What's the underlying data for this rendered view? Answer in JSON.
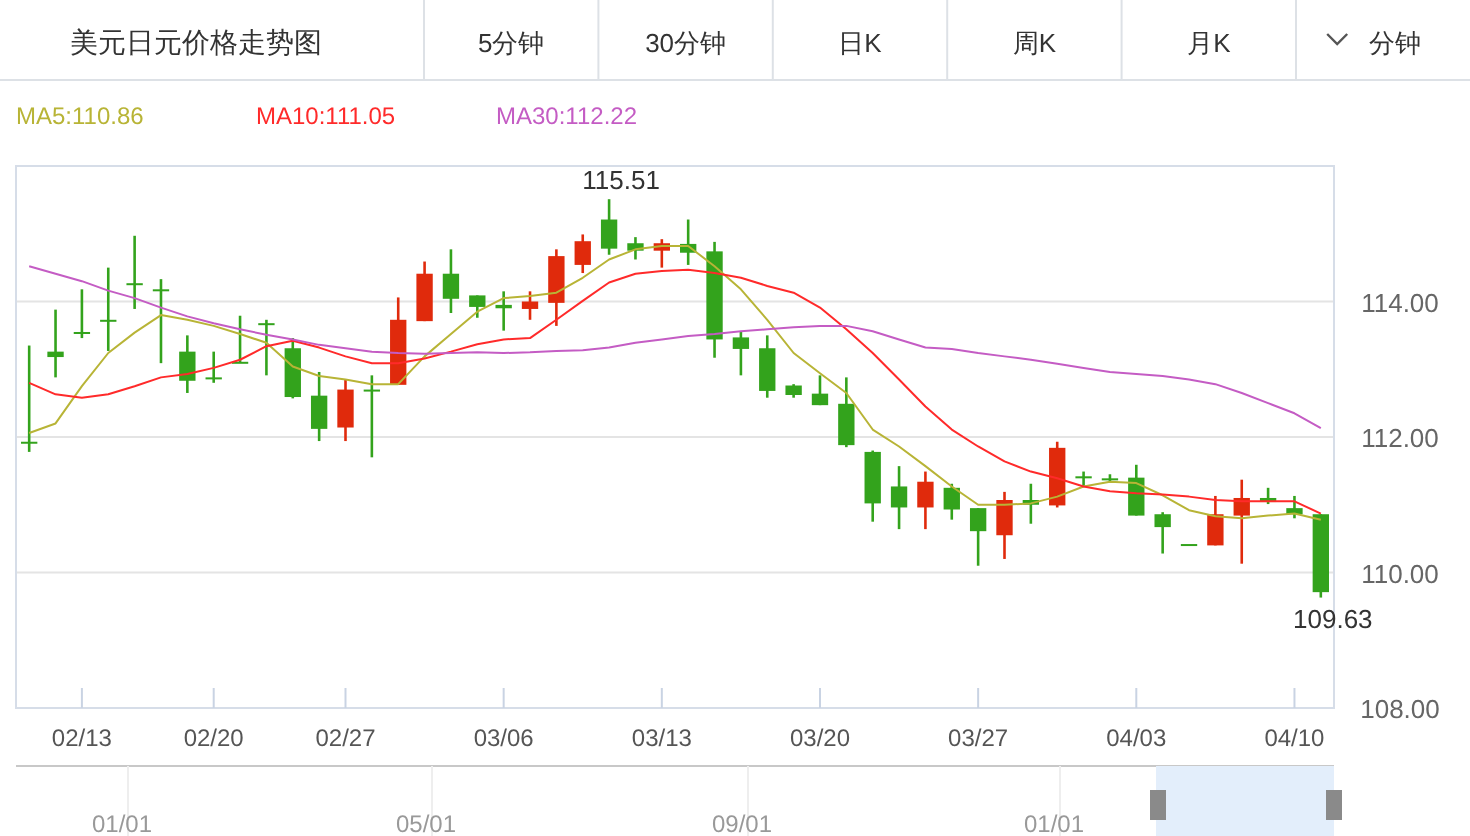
{
  "chart_data": [
    {
      "type": "other",
      "title": "美元日元价格走势图",
      "annotations": [
        "5分钟",
        "30分钟",
        "日K",
        "周K",
        "月K",
        "分钟"
      ]
    },
    {
      "type": "candlestick",
      "categories": [
        null,
        null,
        "02/13",
        null,
        null,
        null,
        null,
        "02/20",
        null,
        null,
        null,
        null,
        "02/27",
        null,
        null,
        null,
        null,
        null,
        "03/06",
        null,
        null,
        null,
        null,
        null,
        "03/13",
        null,
        null,
        null,
        null,
        null,
        "03/20",
        null,
        null,
        null,
        null,
        null,
        "03/27",
        null,
        null,
        null,
        null,
        null,
        "04/03",
        null,
        null,
        null,
        null,
        null,
        "04/10",
        null
      ],
      "ohlc": [
        [
          111.93,
          113.35,
          111.78,
          111.92
        ],
        [
          113.26,
          113.88,
          112.88,
          113.18
        ],
        [
          113.55,
          114.18,
          113.46,
          113.54
        ],
        [
          113.73,
          114.5,
          113.27,
          113.72
        ],
        [
          114.27,
          114.97,
          113.89,
          114.26
        ],
        [
          114.18,
          114.33,
          113.09,
          114.17
        ],
        [
          113.26,
          113.5,
          112.65,
          112.83
        ],
        [
          112.88,
          113.26,
          112.8,
          112.87
        ],
        [
          113.11,
          113.79,
          113.1,
          113.1
        ],
        [
          113.68,
          113.73,
          112.91,
          113.67
        ],
        [
          113.31,
          113.46,
          112.57,
          112.59
        ],
        [
          112.61,
          112.96,
          111.94,
          112.12
        ],
        [
          112.14,
          112.85,
          111.94,
          112.7
        ],
        [
          112.7,
          112.91,
          111.7,
          112.69
        ],
        [
          112.77,
          114.06,
          112.77,
          113.73
        ],
        [
          113.71,
          114.59,
          113.71,
          114.41
        ],
        [
          114.41,
          114.77,
          113.83,
          114.04
        ],
        [
          114.09,
          114.09,
          113.76,
          113.92
        ],
        [
          113.95,
          114.15,
          113.57,
          113.9
        ],
        [
          113.89,
          114.15,
          113.73,
          114.0
        ],
        [
          113.98,
          114.77,
          113.64,
          114.67
        ],
        [
          114.54,
          114.99,
          114.42,
          114.89
        ],
        [
          115.21,
          115.51,
          114.69,
          114.78
        ],
        [
          114.86,
          114.95,
          114.62,
          114.75
        ],
        [
          114.75,
          114.92,
          114.5,
          114.86
        ],
        [
          114.85,
          115.21,
          114.54,
          114.72
        ],
        [
          114.74,
          114.88,
          113.17,
          113.44
        ],
        [
          113.47,
          113.56,
          112.91,
          113.3
        ],
        [
          113.31,
          113.5,
          112.58,
          112.68
        ],
        [
          112.76,
          112.78,
          112.58,
          112.62
        ],
        [
          112.64,
          112.91,
          112.47,
          112.47
        ],
        [
          112.49,
          112.88,
          111.85,
          111.88
        ],
        [
          111.78,
          111.8,
          110.75,
          111.02
        ],
        [
          111.27,
          111.57,
          110.64,
          110.96
        ],
        [
          110.96,
          111.49,
          110.64,
          111.34
        ],
        [
          111.25,
          111.31,
          110.78,
          110.93
        ],
        [
          110.95,
          110.95,
          110.1,
          110.61
        ],
        [
          110.55,
          111.19,
          110.2,
          111.07
        ],
        [
          111.07,
          111.31,
          110.72,
          111.0
        ],
        [
          110.99,
          111.93,
          110.96,
          111.84
        ],
        [
          111.42,
          111.49,
          111.27,
          111.39
        ],
        [
          111.39,
          111.45,
          111.33,
          111.36
        ],
        [
          111.4,
          111.59,
          110.84,
          110.84
        ],
        [
          110.86,
          110.89,
          110.28,
          110.67
        ],
        [
          110.42,
          110.42,
          110.42,
          110.42
        ],
        [
          110.4,
          111.13,
          110.4,
          110.86
        ],
        [
          110.84,
          111.37,
          110.13,
          111.1
        ],
        [
          111.1,
          111.25,
          111.01,
          111.04
        ],
        [
          110.95,
          111.13,
          110.8,
          110.86
        ],
        [
          110.86,
          110.86,
          109.63,
          109.71
        ]
      ],
      "colors": [
        "#33a31c",
        "#33a31c",
        "#33a31c",
        "#33a31c",
        "#33a31c",
        "#33a31c",
        "#33a31c",
        "#33a31c",
        "#33a31c",
        "#33a31c",
        "#33a31c",
        "#33a31c",
        "#e02a0c",
        "#33a31c",
        "#e02a0c",
        "#e02a0c",
        "#33a31c",
        "#33a31c",
        "#33a31c",
        "#e02a0c",
        "#e02a0c",
        "#e02a0c",
        "#33a31c",
        "#33a31c",
        "#e02a0c",
        "#33a31c",
        "#33a31c",
        "#33a31c",
        "#33a31c",
        "#33a31c",
        "#33a31c",
        "#33a31c",
        "#33a31c",
        "#33a31c",
        "#e02a0c",
        "#33a31c",
        "#33a31c",
        "#e02a0c",
        "#33a31c",
        "#e02a0c",
        "#33a31c",
        "#33a31c",
        "#33a31c",
        "#33a31c",
        "#33a31c",
        "#e02a0c",
        "#e02a0c",
        "#33a31c",
        "#33a31c",
        "#33a31c"
      ],
      "series": [
        {
          "name": "MA5:110.86",
          "type": "line",
          "color": "#b8b436",
          "values": [
            112.06,
            112.2,
            112.75,
            113.24,
            113.54,
            113.8,
            113.73,
            113.64,
            113.52,
            113.39,
            113.04,
            112.9,
            112.85,
            112.78,
            112.78,
            113.19,
            113.52,
            113.85,
            114.05,
            114.08,
            114.13,
            114.35,
            114.62,
            114.77,
            114.82,
            114.82,
            114.52,
            114.18,
            113.73,
            113.24,
            112.94,
            112.65,
            112.11,
            111.86,
            111.57,
            111.27,
            111.0,
            111.0,
            111.02,
            111.12,
            111.27,
            111.34,
            111.32,
            111.14,
            110.92,
            110.83,
            110.8,
            110.84,
            110.87,
            110.78
          ]
        },
        {
          "name": "MA10:111.05",
          "type": "line",
          "color": "#ff2a2a",
          "values": [
            112.8,
            112.63,
            112.58,
            112.63,
            112.75,
            112.88,
            112.93,
            113.02,
            113.14,
            113.34,
            113.42,
            113.32,
            113.19,
            113.09,
            113.09,
            113.16,
            113.26,
            113.37,
            113.44,
            113.46,
            113.73,
            114.01,
            114.28,
            114.41,
            114.45,
            114.47,
            114.42,
            114.35,
            114.23,
            114.13,
            113.91,
            113.59,
            113.24,
            112.85,
            112.45,
            112.11,
            111.86,
            111.64,
            111.49,
            111.39,
            111.27,
            111.2,
            111.17,
            111.15,
            111.12,
            111.07,
            111.05,
            111.05,
            111.05,
            110.87
          ]
        },
        {
          "name": "MA30:112.22",
          "type": "line",
          "color": "#c45cc4",
          "values": [
            114.52,
            114.41,
            114.3,
            114.16,
            114.05,
            113.91,
            113.78,
            113.68,
            113.59,
            113.51,
            113.44,
            113.36,
            113.31,
            113.26,
            113.24,
            113.23,
            113.24,
            113.25,
            113.24,
            113.25,
            113.27,
            113.28,
            113.32,
            113.39,
            113.44,
            113.49,
            113.52,
            113.56,
            113.59,
            113.62,
            113.64,
            113.64,
            113.56,
            113.44,
            113.32,
            113.3,
            113.24,
            113.19,
            113.14,
            113.08,
            113.02,
            112.96,
            112.93,
            112.9,
            112.85,
            112.78,
            112.65,
            112.5,
            112.35,
            112.13
          ]
        }
      ],
      "ylim": [
        108,
        116
      ],
      "yticks": [
        {
          "value": 108,
          "label": "108.00"
        },
        {
          "value": 110,
          "label": "110.00"
        },
        {
          "value": 112,
          "label": "112.00"
        },
        {
          "value": 114,
          "label": "114.00"
        }
      ],
      "grid": "y",
      "legend": "top left",
      "annotations": [
        "115.51",
        "109.63"
      ]
    },
    {
      "type": "other",
      "annotations": [
        "01/01",
        "05/01",
        "09/01",
        "01/01"
      ]
    }
  ]
}
